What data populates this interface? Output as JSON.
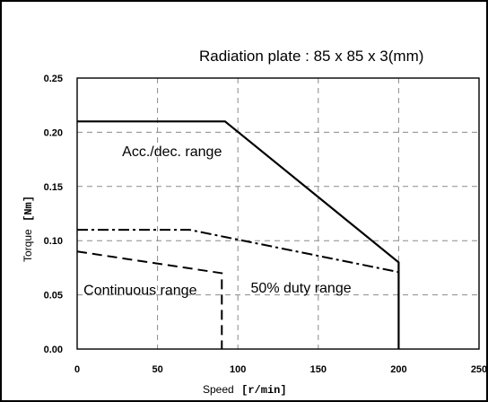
{
  "chart_data": {
    "type": "line",
    "title": "Radiation plate : 85 x 85 x 3(mm)",
    "xlabel": "Speed",
    "xlabel_unit": "[r/min]",
    "ylabel": "Torque",
    "ylabel_unit": "[Nm]",
    "xlim": [
      0,
      250
    ],
    "ylim": [
      0,
      0.25
    ],
    "x_ticks": [
      "0",
      "50",
      "100",
      "150",
      "200",
      "250"
    ],
    "y_ticks": [
      "0.00",
      "0.05",
      "0.10",
      "0.15",
      "0.20",
      "0.25"
    ],
    "grid": true,
    "series": [
      {
        "style": "solid",
        "x": [
          0,
          92,
          200,
          200
        ],
        "y": [
          0.21,
          0.21,
          0.08,
          0
        ]
      },
      {
        "style": "dash-dot",
        "x": [
          0,
          70,
          200
        ],
        "y": [
          0.11,
          0.11,
          0.071
        ]
      },
      {
        "style": "dashed",
        "x": [
          0,
          90,
          90
        ],
        "y": [
          0.09,
          0.07,
          0
        ]
      }
    ],
    "annotations": [
      {
        "text": "Acc./dec. range",
        "x": 28,
        "y": 0.178
      },
      {
        "text": "50% duty range",
        "x": 108,
        "y": 0.052
      },
      {
        "text": "Continuous range",
        "x": 4,
        "y": 0.05
      }
    ]
  }
}
